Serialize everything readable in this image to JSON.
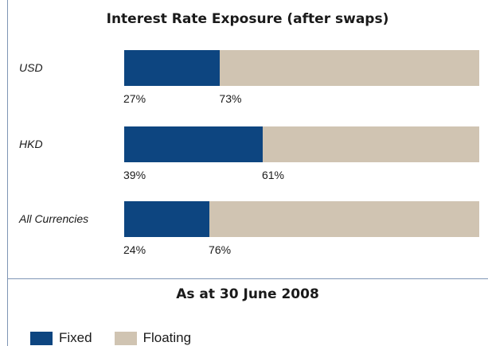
{
  "chart_data": {
    "type": "bar",
    "orientation": "horizontal",
    "stacked": true,
    "title": "Interest Rate Exposure (after swaps)",
    "subtitle": "As at 30 June 2008",
    "categories": [
      "USD",
      "HKD",
      "All Currencies"
    ],
    "series": [
      {
        "name": "Fixed",
        "values": [
          27,
          39,
          24
        ],
        "labels": [
          "27%",
          "39%",
          "24%"
        ],
        "color": "#0d4580"
      },
      {
        "name": "Floating",
        "values": [
          73,
          61,
          76
        ],
        "labels": [
          "73%",
          "61%",
          "76%"
        ],
        "color": "#d0c4b2"
      }
    ],
    "xlim": [
      0,
      100
    ],
    "grid": false,
    "legend_position": "bottom-left"
  }
}
